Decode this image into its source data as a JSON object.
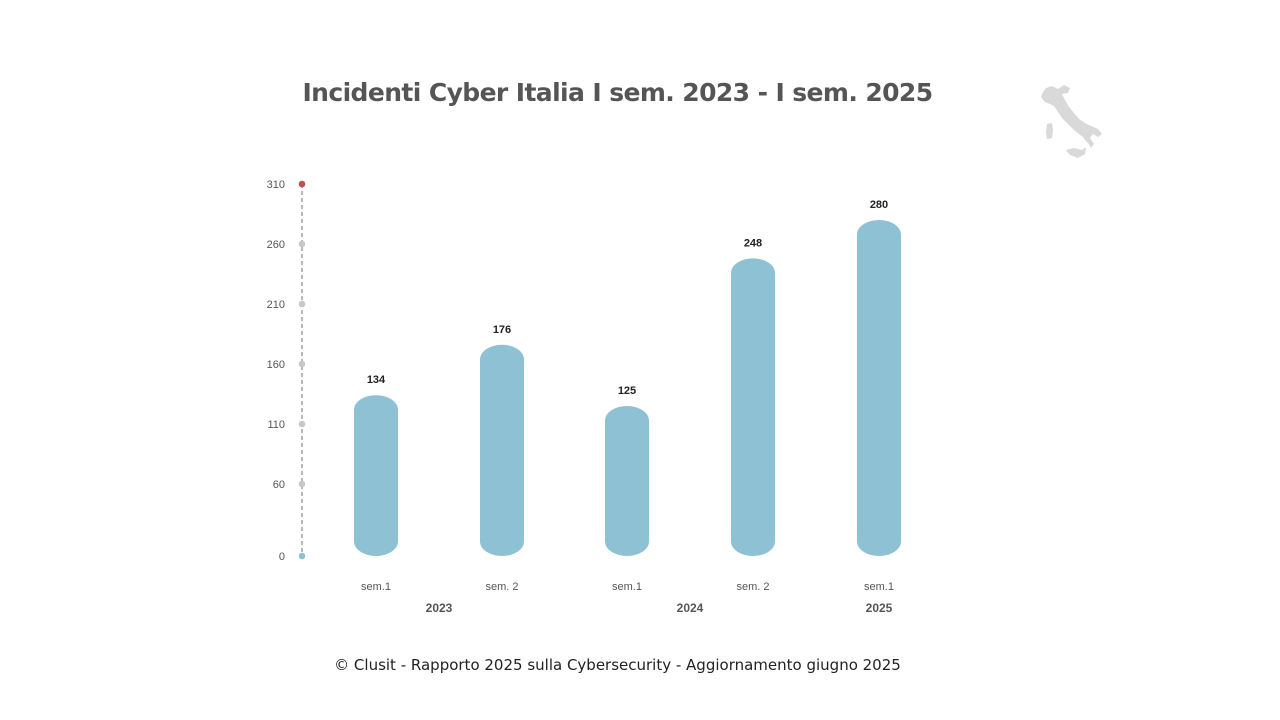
{
  "title": "Incidenti Cyber Italia I sem. 2023 - I sem. 2025",
  "footer": "© Clusit - Rapporto 2025 sulla Cybersecurity - Aggiornamento giugno 2025",
  "logo": {
    "icon": "italy-map-icon",
    "color": "#d9d9d9"
  },
  "chart_data": {
    "type": "bar",
    "title": "Incidenti Cyber Italia I sem. 2023 - I sem. 2025",
    "categories": [
      "sem.1",
      "sem. 2",
      "sem.1",
      "sem. 2",
      "sem.1"
    ],
    "groups": [
      {
        "label": "2023",
        "categories": [
          0,
          1
        ]
      },
      {
        "label": "2024",
        "categories": [
          2,
          3
        ]
      },
      {
        "label": "2025",
        "categories": [
          4
        ]
      }
    ],
    "values": [
      134,
      176,
      125,
      248,
      280
    ],
    "yticks": [
      0,
      60,
      110,
      160,
      210,
      260,
      310
    ],
    "ylim": [
      0,
      310
    ],
    "xlabel": "",
    "ylabel": "",
    "grid": false,
    "colors": {
      "bar": "#8fc1d5",
      "axis_line": "#a0a0a0",
      "axis_dot": "#c8c8c8",
      "top_dot": "#c0504d",
      "bottom_dot": "#8fc1d5"
    }
  }
}
